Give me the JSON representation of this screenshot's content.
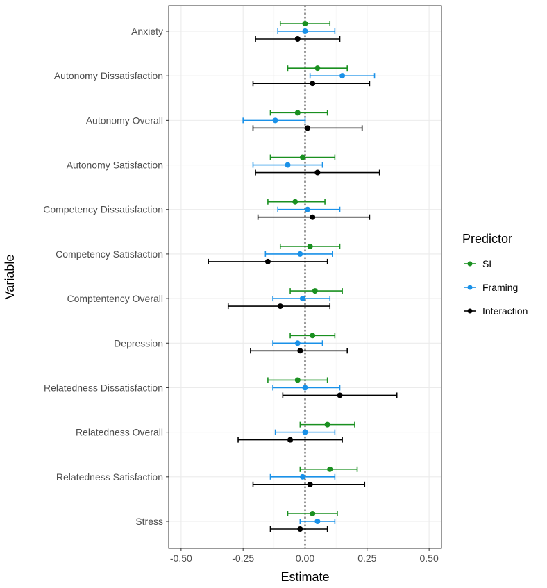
{
  "chart_data": {
    "type": "scatter",
    "subtype": "coefficient-plot-with-error-bars",
    "title": "",
    "xlabel": "Estimate",
    "ylabel": "Variable",
    "xlim": [
      -0.55,
      0.55
    ],
    "xticks": [
      -0.5,
      -0.25,
      0,
      0.25,
      0.5
    ],
    "xtick_labels": [
      "-0.50",
      "-0.25",
      "0.00",
      "0.25",
      "0.50"
    ],
    "reference_line": {
      "x": 0,
      "style": "dotted"
    },
    "grid": true,
    "legend": {
      "title": "Predictor",
      "position": "right"
    },
    "categories": [
      "Anxiety",
      "Autonomy Dissatisfaction",
      "Autonomy Overall",
      "Autonomy Satisfaction",
      "Competency Dissatisfaction",
      "Competency Satisfaction",
      "Comptentency Overall",
      "Depression",
      "Relatedness Dissatisfaction",
      "Relatedness Overall",
      "Relatedness Satisfaction",
      "Stress"
    ],
    "series": [
      {
        "name": "SL",
        "color": "#1a9020",
        "values": [
          0.0,
          0.05,
          -0.03,
          -0.01,
          -0.04,
          0.02,
          0.04,
          0.03,
          -0.03,
          0.09,
          0.1,
          0.03
        ],
        "lower": [
          -0.1,
          -0.07,
          -0.14,
          -0.14,
          -0.15,
          -0.1,
          -0.06,
          -0.06,
          -0.15,
          -0.02,
          -0.02,
          -0.07
        ],
        "upper": [
          0.1,
          0.17,
          0.09,
          0.12,
          0.08,
          0.14,
          0.15,
          0.12,
          0.09,
          0.2,
          0.21,
          0.13
        ]
      },
      {
        "name": "Framing",
        "color": "#1a91e8",
        "values": [
          0.0,
          0.15,
          -0.12,
          -0.07,
          0.01,
          -0.02,
          -0.01,
          -0.03,
          0.0,
          0.0,
          -0.01,
          0.05
        ],
        "lower": [
          -0.11,
          0.02,
          -0.25,
          -0.21,
          -0.11,
          -0.16,
          -0.13,
          -0.13,
          -0.13,
          -0.12,
          -0.14,
          -0.02
        ],
        "upper": [
          0.12,
          0.28,
          0.0,
          0.07,
          0.14,
          0.11,
          0.1,
          0.07,
          0.14,
          0.12,
          0.12,
          0.12
        ]
      },
      {
        "name": "Interaction",
        "color": "#000000",
        "values": [
          -0.03,
          0.03,
          0.01,
          0.05,
          0.03,
          -0.15,
          -0.1,
          -0.02,
          0.14,
          -0.06,
          0.02,
          -0.02
        ],
        "lower": [
          -0.2,
          -0.21,
          -0.21,
          -0.2,
          -0.19,
          -0.39,
          -0.31,
          -0.22,
          -0.09,
          -0.27,
          -0.21,
          -0.14
        ],
        "upper": [
          0.14,
          0.26,
          0.23,
          0.3,
          0.26,
          0.09,
          0.1,
          0.17,
          0.37,
          0.15,
          0.24,
          0.09
        ]
      }
    ]
  }
}
